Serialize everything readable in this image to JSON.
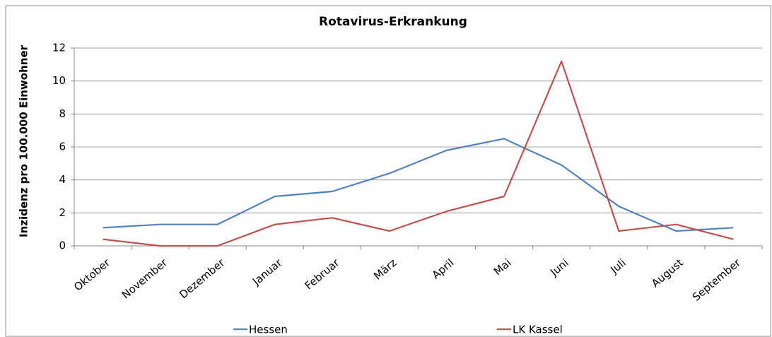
{
  "chart_data": {
    "type": "line",
    "title": "Rotavirus-Erkrankung",
    "y_label": "Inzidenz pro 100.000 Einwohner",
    "categories": [
      "Oktober",
      "November",
      "Dezember",
      "Januar",
      "Februar",
      "März",
      "April",
      "Mai",
      "Juni",
      "Juli",
      "August",
      "September"
    ],
    "series": [
      {
        "name": "Hessen",
        "color": "#4f81bd",
        "values": [
          1.1,
          1.3,
          1.3,
          3.0,
          3.3,
          4.4,
          5.8,
          6.5,
          4.9,
          2.4,
          0.9,
          1.1
        ]
      },
      {
        "name": "LK Kassel",
        "color": "#c0504d",
        "values": [
          0.4,
          0,
          0,
          1.3,
          1.7,
          0.9,
          2.1,
          3.0,
          11.2,
          0.9,
          1.3,
          0.4
        ]
      }
    ],
    "ylim": [
      0,
      12
    ],
    "yticks": [
      0,
      2,
      4,
      6,
      8,
      10,
      12
    ],
    "grid": true,
    "legend": "bottom"
  }
}
